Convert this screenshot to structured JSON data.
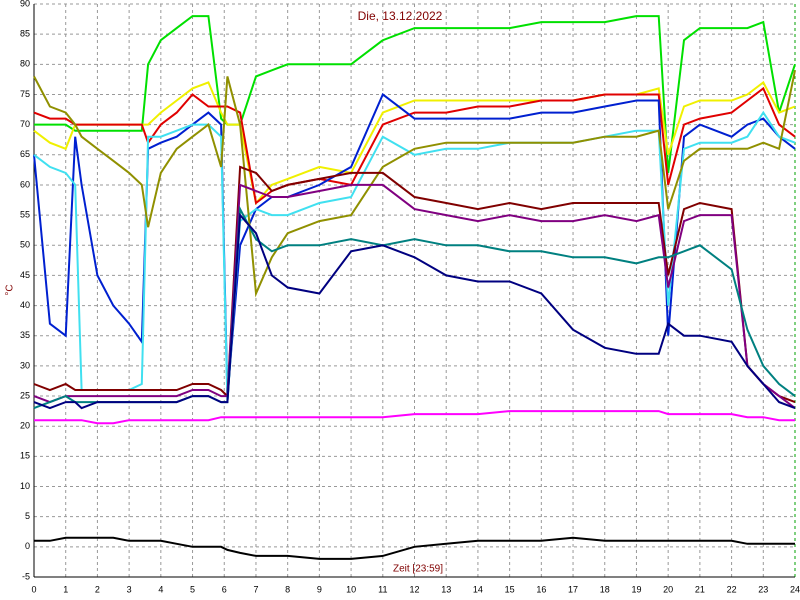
{
  "chart_data": {
    "type": "line",
    "title": "Die, 13.12.2022",
    "x_label": "Zeit [23:59]",
    "y_label": "°C",
    "x": [
      0,
      0.5,
      1,
      1.3,
      1.5,
      2,
      2.5,
      3,
      3.4,
      3.6,
      4,
      4.5,
      5,
      5.5,
      5.9,
      6.1,
      6.5,
      7,
      7.5,
      8,
      9,
      10,
      11,
      12,
      13,
      14,
      15,
      16,
      17,
      18,
      19,
      19.7,
      20,
      20.5,
      21,
      22,
      22.5,
      23,
      23.5,
      24
    ],
    "xlim": [
      0,
      24
    ],
    "xticks": [
      0,
      1,
      2,
      3,
      4,
      5,
      6,
      7,
      8,
      9,
      10,
      11,
      12,
      13,
      14,
      15,
      16,
      17,
      18,
      19,
      20,
      21,
      22,
      23,
      24
    ],
    "ylim": [
      -5,
      90
    ],
    "yticks": [
      -5,
      0,
      5,
      10,
      15,
      20,
      25,
      30,
      35,
      40,
      45,
      50,
      55,
      60,
      65,
      70,
      75,
      80,
      85,
      90
    ],
    "grid": true,
    "series": [
      {
        "color": "#00e000",
        "values": [
          70,
          70,
          70,
          69,
          69,
          69,
          69,
          69,
          69,
          80,
          84,
          86,
          88,
          88,
          71,
          70,
          70,
          78,
          79,
          80,
          80,
          80,
          84,
          86,
          86,
          86,
          86,
          87,
          87,
          87,
          88,
          88,
          62,
          84,
          86,
          86,
          86,
          87,
          72,
          80
        ]
      },
      {
        "color": "#f0f000",
        "values": [
          69,
          67,
          66,
          70,
          70,
          70,
          70,
          70,
          70,
          70,
          72,
          74,
          76,
          77,
          72,
          70,
          70,
          57,
          60,
          61,
          63,
          62,
          72,
          74,
          74,
          74,
          74,
          74,
          74,
          75,
          75,
          76,
          65,
          73,
          74,
          74,
          75,
          77,
          72,
          73
        ]
      },
      {
        "color": "#e00000",
        "values": [
          72,
          71,
          71,
          70,
          70,
          70,
          70,
          70,
          70,
          67,
          70,
          72,
          75,
          73,
          73,
          73,
          72,
          57,
          59,
          60,
          61,
          60,
          70,
          72,
          72,
          73,
          73,
          74,
          74,
          75,
          75,
          75,
          60,
          70,
          71,
          72,
          74,
          76,
          70,
          68
        ]
      },
      {
        "color": "#0020d0",
        "values": [
          65,
          37,
          35,
          68,
          60,
          45,
          40,
          37,
          34,
          66,
          67,
          68,
          70,
          72,
          70,
          25,
          50,
          56,
          58,
          58,
          60,
          63,
          75,
          71,
          71,
          71,
          71,
          72,
          72,
          73,
          74,
          74,
          35,
          68,
          70,
          68,
          70,
          71,
          68,
          66
        ]
      },
      {
        "color": "#40e0f0",
        "values": [
          65,
          63,
          62,
          60,
          26,
          26,
          26,
          26,
          27,
          68,
          68,
          69,
          70,
          70,
          68,
          24,
          54,
          56,
          55,
          55,
          57,
          58,
          68,
          65,
          66,
          66,
          67,
          67,
          67,
          68,
          69,
          69,
          40,
          66,
          67,
          67,
          68,
          72,
          68,
          67
        ]
      },
      {
        "color": "#909000",
        "values": [
          78,
          73,
          72,
          70,
          68,
          66,
          64,
          62,
          60,
          53,
          62,
          66,
          68,
          70,
          63,
          78,
          70,
          42,
          48,
          52,
          54,
          55,
          63,
          66,
          67,
          67,
          67,
          67,
          67,
          68,
          68,
          69,
          56,
          64,
          66,
          66,
          66,
          67,
          66,
          79
        ]
      },
      {
        "color": "#800000",
        "values": [
          27,
          26,
          27,
          26,
          26,
          26,
          26,
          26,
          26,
          26,
          26,
          26,
          27,
          27,
          26,
          25,
          63,
          62,
          59,
          60,
          61,
          62,
          62,
          58,
          57,
          56,
          57,
          56,
          57,
          57,
          57,
          57,
          45,
          56,
          57,
          56,
          30,
          27,
          25,
          24
        ]
      },
      {
        "color": "#800080",
        "values": [
          25,
          24,
          25,
          25,
          25,
          25,
          25,
          25,
          25,
          25,
          25,
          25,
          26,
          26,
          25,
          25,
          60,
          59,
          58,
          58,
          59,
          60,
          60,
          56,
          55,
          54,
          55,
          54,
          54,
          55,
          54,
          55,
          43,
          54,
          55,
          55,
          30,
          27,
          25,
          23
        ]
      },
      {
        "color": "#008080",
        "values": [
          23,
          24,
          25,
          24,
          24,
          24,
          24,
          24,
          24,
          24,
          24,
          24,
          25,
          25,
          24,
          24,
          56,
          51,
          49,
          50,
          50,
          51,
          50,
          51,
          50,
          50,
          49,
          49,
          48,
          48,
          47,
          48,
          48,
          49,
          50,
          46,
          36,
          30,
          27,
          25
        ]
      },
      {
        "color": "#000080",
        "values": [
          24,
          23,
          24,
          24,
          23,
          24,
          24,
          24,
          24,
          24,
          24,
          24,
          25,
          25,
          24,
          24,
          55,
          52,
          45,
          43,
          42,
          49,
          50,
          48,
          45,
          44,
          44,
          42,
          36,
          33,
          32,
          32,
          37,
          35,
          35,
          34,
          30,
          27,
          24,
          23
        ]
      },
      {
        "color": "#ff00ff",
        "values": [
          21,
          21,
          21,
          21,
          21,
          20.5,
          20.5,
          21,
          21,
          21,
          21,
          21,
          21,
          21,
          21.5,
          21.5,
          21.5,
          21.5,
          21.5,
          21.5,
          21.5,
          21.5,
          21.5,
          22,
          22,
          22,
          22.5,
          22.5,
          22.5,
          22.5,
          22.5,
          22.5,
          22,
          22,
          22,
          22,
          21.5,
          21.5,
          21,
          21
        ]
      },
      {
        "color": "#000000",
        "values": [
          1,
          1,
          1.5,
          1.5,
          1.5,
          1.5,
          1.5,
          1,
          1,
          1,
          1,
          0.5,
          0,
          0,
          0,
          -0.5,
          -1,
          -1.5,
          -1.5,
          -1.5,
          -2,
          -2,
          -1.5,
          0,
          0.5,
          1,
          1,
          1,
          1.5,
          1,
          1,
          1,
          1,
          1,
          1,
          1,
          0.5,
          0.5,
          0.5,
          0.5
        ]
      }
    ]
  }
}
